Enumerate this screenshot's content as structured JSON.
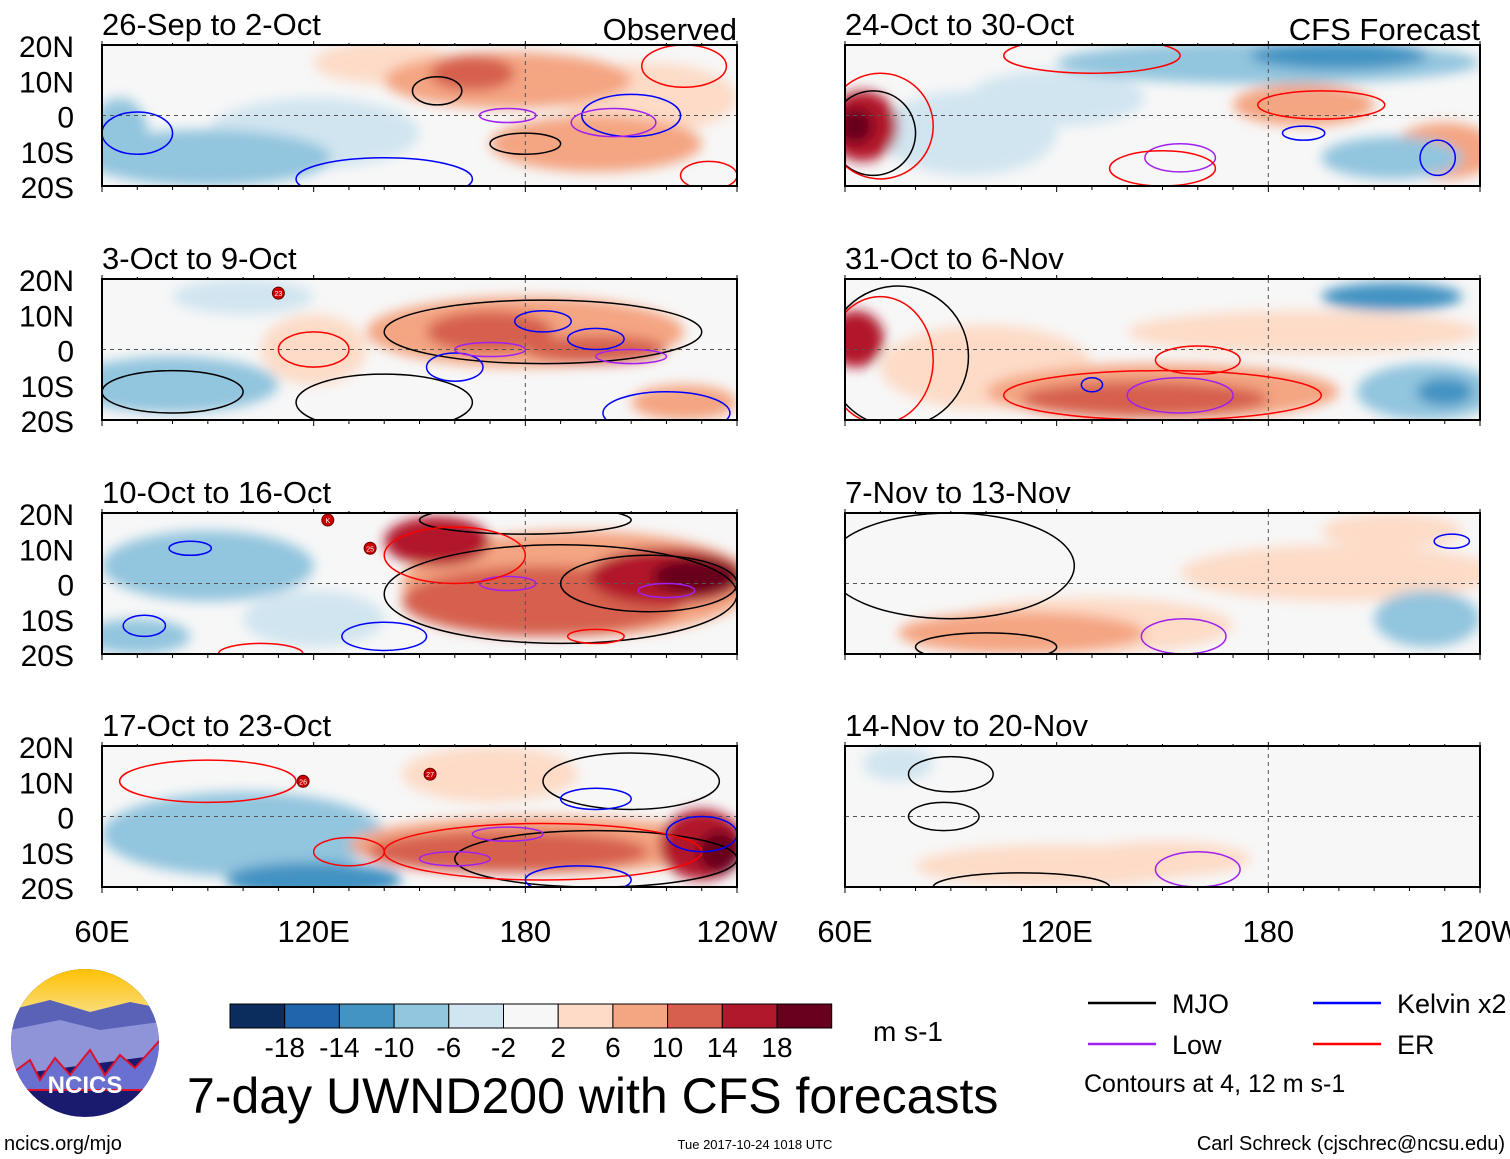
{
  "chart_data": {
    "type": "heatmap",
    "title": "7-day UWND200 with CFS forecasts",
    "units": "m s-1",
    "column_headers": [
      "Observed",
      "CFS Forecast"
    ],
    "lat_ticks": [
      "20N",
      "10N",
      "0",
      "10S",
      "20S"
    ],
    "lon_ticks": [
      "60E",
      "120E",
      "180",
      "120W"
    ],
    "lon_range": [
      60,
      240
    ],
    "lat_range": [
      -20,
      20
    ],
    "colorbar": {
      "levels": [
        "-18",
        "-14",
        "-10",
        "-6",
        "-2",
        "2",
        "6",
        "10",
        "14",
        "18"
      ],
      "colors": [
        "#0b2d5e",
        "#2166ac",
        "#4393c3",
        "#92c5de",
        "#d1e5f0",
        "#f7f7f7",
        "#fddbc7",
        "#f4a582",
        "#d6604d",
        "#b2182b",
        "#67001f"
      ]
    },
    "legend": [
      {
        "label": "MJO",
        "color": "#000000"
      },
      {
        "label": "Kelvin x2",
        "color": "#0000ff"
      },
      {
        "label": "Low",
        "color": "#a020f0"
      },
      {
        "label": "ER",
        "color": "#ff0000"
      }
    ],
    "contour_note": "Contours at 4, 12 m s-1",
    "panels": [
      {
        "title": "26-Sep to 2-Oct",
        "col": 0,
        "row": 0,
        "anoms": [
          [
            90,
            -12,
            35,
            8,
            3
          ],
          [
            120,
            -5,
            30,
            10,
            4
          ],
          [
            175,
            10,
            35,
            8,
            7
          ],
          [
            165,
            12,
            12,
            5,
            8
          ],
          [
            200,
            -8,
            30,
            8,
            7
          ],
          [
            215,
            5,
            25,
            10,
            6
          ],
          [
            140,
            15,
            20,
            6,
            6
          ],
          [
            65,
            -5,
            8,
            10,
            3
          ]
        ],
        "contours": [
          [
            155,
            7,
            7,
            4,
            "MJO"
          ],
          [
            180,
            -8,
            10,
            3,
            "MJO"
          ],
          [
            210,
            0,
            14,
            6,
            "Kelvin"
          ],
          [
            140,
            -18,
            25,
            6,
            "Kelvin"
          ],
          [
            205,
            -2,
            12,
            4,
            "Low"
          ],
          [
            175,
            0,
            8,
            2,
            "Low"
          ],
          [
            232,
            -17,
            8,
            4,
            "ER"
          ],
          [
            225,
            14,
            12,
            6,
            "ER"
          ],
          [
            70,
            -5,
            10,
            6,
            "Kelvin"
          ]
        ],
        "storms": []
      },
      {
        "title": "3-Oct to 9-Oct",
        "col": 0,
        "row": 1,
        "anoms": [
          [
            80,
            -10,
            30,
            8,
            3
          ],
          [
            180,
            5,
            45,
            10,
            7
          ],
          [
            170,
            5,
            18,
            6,
            8
          ],
          [
            200,
            0,
            20,
            4,
            8
          ],
          [
            120,
            0,
            15,
            10,
            6
          ],
          [
            100,
            15,
            20,
            5,
            4
          ],
          [
            225,
            -15,
            15,
            5,
            7
          ]
        ],
        "contours": [
          [
            185,
            5,
            45,
            9,
            "MJO"
          ],
          [
            80,
            -12,
            20,
            6,
            "MJO"
          ],
          [
            140,
            -15,
            25,
            8,
            "MJO"
          ],
          [
            185,
            8,
            8,
            3,
            "Kelvin"
          ],
          [
            160,
            -5,
            8,
            4,
            "Kelvin"
          ],
          [
            200,
            3,
            8,
            3,
            "Kelvin"
          ],
          [
            170,
            0,
            10,
            2,
            "Low"
          ],
          [
            210,
            -2,
            10,
            2,
            "Low"
          ],
          [
            120,
            0,
            10,
            5,
            "ER"
          ],
          [
            220,
            -18,
            18,
            6,
            "Kelvin"
          ]
        ],
        "storms": [
          {
            "label": "23",
            "lon": 110,
            "lat": 16
          }
        ]
      },
      {
        "title": "10-Oct to 16-Oct",
        "col": 0,
        "row": 2,
        "anoms": [
          [
            90,
            5,
            30,
            10,
            3
          ],
          [
            120,
            -10,
            20,
            8,
            4
          ],
          [
            195,
            0,
            50,
            15,
            7
          ],
          [
            185,
            -5,
            40,
            10,
            8
          ],
          [
            155,
            12,
            15,
            7,
            9
          ],
          [
            220,
            2,
            22,
            8,
            9
          ],
          [
            228,
            2,
            12,
            5,
            10
          ],
          [
            70,
            -15,
            15,
            5,
            3
          ]
        ],
        "contours": [
          [
            190,
            -3,
            50,
            14,
            "MJO"
          ],
          [
            215,
            0,
            25,
            8,
            "MJO"
          ],
          [
            180,
            18,
            30,
            4,
            "MJO"
          ],
          [
            85,
            10,
            6,
            2,
            "Kelvin"
          ],
          [
            72,
            -12,
            6,
            3,
            "Kelvin"
          ],
          [
            140,
            -15,
            12,
            4,
            "Kelvin"
          ],
          [
            175,
            0,
            8,
            2,
            "Low"
          ],
          [
            220,
            -2,
            8,
            2,
            "Low"
          ],
          [
            160,
            8,
            20,
            8,
            "ER"
          ],
          [
            200,
            -15,
            8,
            2,
            "ER"
          ],
          [
            105,
            -20,
            12,
            3,
            "ER"
          ]
        ],
        "storms": [
          {
            "label": "K",
            "lon": 124,
            "lat": 18
          },
          {
            "label": "25",
            "lon": 136,
            "lat": 10
          }
        ]
      },
      {
        "title": "17-Oct to 23-Oct",
        "col": 0,
        "row": 3,
        "anoms": [
          [
            100,
            -5,
            40,
            12,
            3
          ],
          [
            120,
            -18,
            25,
            5,
            2
          ],
          [
            185,
            -8,
            55,
            8,
            7
          ],
          [
            175,
            -10,
            40,
            6,
            8
          ],
          [
            230,
            -8,
            12,
            10,
            9
          ],
          [
            235,
            -10,
            6,
            6,
            10
          ],
          [
            170,
            12,
            25,
            8,
            6
          ]
        ],
        "contours": [
          [
            210,
            10,
            25,
            8,
            "MJO"
          ],
          [
            200,
            -12,
            40,
            8,
            "MJO"
          ],
          [
            130,
            -10,
            10,
            4,
            "ER"
          ],
          [
            90,
            10,
            25,
            6,
            "ER"
          ],
          [
            185,
            -10,
            45,
            8,
            "ER"
          ],
          [
            200,
            5,
            10,
            3,
            "Kelvin"
          ],
          [
            175,
            -5,
            10,
            2,
            "Low"
          ],
          [
            160,
            -12,
            10,
            2,
            "Low"
          ],
          [
            230,
            -5,
            10,
            5,
            "Kelvin"
          ],
          [
            195,
            -18,
            15,
            4,
            "Kelvin"
          ]
        ],
        "storms": [
          {
            "label": "26",
            "lon": 117,
            "lat": 10
          },
          {
            "label": "27",
            "lon": 153,
            "lat": 12
          }
        ]
      },
      {
        "title": "24-Oct to 30-Oct",
        "col": 1,
        "row": 0,
        "anoms": [
          [
            180,
            15,
            60,
            6,
            3
          ],
          [
            200,
            17,
            25,
            4,
            2
          ],
          [
            65,
            -3,
            10,
            10,
            9
          ],
          [
            63,
            -3,
            5,
            5,
            10
          ],
          [
            95,
            -5,
            25,
            12,
            4
          ],
          [
            190,
            3,
            20,
            6,
            7
          ],
          [
            230,
            -10,
            15,
            8,
            7
          ],
          [
            120,
            5,
            25,
            8,
            4
          ],
          [
            215,
            -12,
            20,
            6,
            3
          ]
        ],
        "contours": [
          [
            68,
            -5,
            12,
            12,
            "MJO"
          ],
          [
            70,
            -3,
            15,
            15,
            "ER"
          ],
          [
            195,
            3,
            18,
            4,
            "ER"
          ],
          [
            130,
            17,
            25,
            5,
            "ER"
          ],
          [
            190,
            -5,
            6,
            2,
            "Kelvin"
          ],
          [
            228,
            -12,
            5,
            5,
            "Kelvin"
          ],
          [
            155,
            -12,
            10,
            4,
            "Low"
          ],
          [
            150,
            -15,
            15,
            5,
            "ER"
          ]
        ],
        "storms": []
      },
      {
        "title": "31-Oct to 6-Nov",
        "col": 1,
        "row": 1,
        "anoms": [
          [
            63,
            3,
            8,
            8,
            9
          ],
          [
            150,
            -12,
            50,
            8,
            7
          ],
          [
            145,
            -14,
            35,
            5,
            8
          ],
          [
            190,
            5,
            50,
            6,
            6
          ],
          [
            215,
            15,
            20,
            4,
            2
          ],
          [
            225,
            -12,
            20,
            8,
            3
          ],
          [
            230,
            -12,
            8,
            4,
            2
          ],
          [
            100,
            -5,
            30,
            12,
            6
          ]
        ],
        "contours": [
          [
            75,
            -2,
            20,
            20,
            "MJO"
          ],
          [
            70,
            -3,
            15,
            18,
            "ER"
          ],
          [
            150,
            -13,
            45,
            7,
            "ER"
          ],
          [
            160,
            -3,
            12,
            4,
            "ER"
          ],
          [
            155,
            -13,
            15,
            5,
            "Low"
          ],
          [
            130,
            -10,
            3,
            2,
            "Kelvin"
          ]
        ],
        "storms": []
      },
      {
        "title": "7-Nov to 13-Nov",
        "col": 1,
        "row": 2,
        "anoms": [
          [
            110,
            -14,
            35,
            6,
            7
          ],
          [
            130,
            -12,
            40,
            8,
            6
          ],
          [
            200,
            3,
            45,
            8,
            6
          ],
          [
            225,
            -10,
            15,
            8,
            3
          ],
          [
            215,
            15,
            20,
            5,
            6
          ]
        ],
        "contours": [
          [
            90,
            5,
            35,
            15,
            "MJO"
          ],
          [
            100,
            -18,
            20,
            4,
            "MJO"
          ],
          [
            156,
            -15,
            12,
            5,
            "Low"
          ],
          [
            232,
            12,
            5,
            2,
            "Kelvin"
          ]
        ],
        "storms": []
      },
      {
        "title": "14-Nov to 20-Nov",
        "col": 1,
        "row": 3,
        "anoms": [
          [
            120,
            -14,
            40,
            6,
            6
          ],
          [
            150,
            -12,
            25,
            5,
            6
          ],
          [
            75,
            15,
            10,
            5,
            4
          ]
        ],
        "contours": [
          [
            90,
            12,
            12,
            5,
            "MJO"
          ],
          [
            88,
            0,
            10,
            4,
            "MJO"
          ],
          [
            110,
            -20,
            25,
            4,
            "MJO"
          ],
          [
            160,
            -15,
            12,
            5,
            "Low"
          ]
        ],
        "storms": []
      }
    ]
  },
  "footer": {
    "logo_text": "NCICS",
    "url": "ncics.org/mjo",
    "timestamp": "Tue 2017-10-24 1018 UTC",
    "author": "Carl Schreck (cjschrec@ncsu.edu)"
  }
}
